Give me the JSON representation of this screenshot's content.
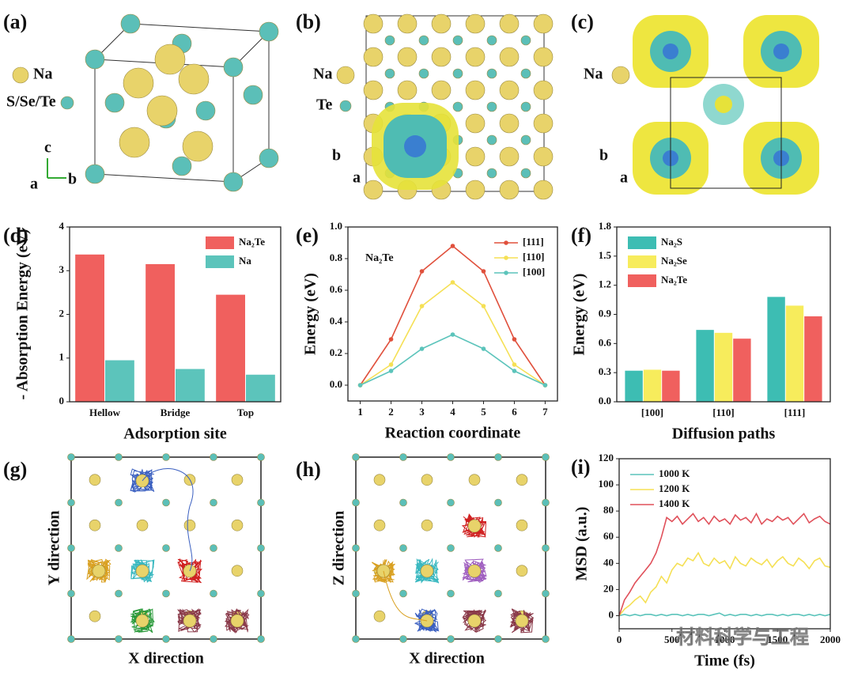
{
  "panels": {
    "a": {
      "label": "(a)",
      "legend": [
        "Na",
        "S/Se/Te"
      ],
      "axes": [
        "c",
        "a",
        "b"
      ]
    },
    "b": {
      "label": "(b)",
      "legend": [
        "Na",
        "Te"
      ],
      "axes": [
        "b",
        "a"
      ]
    },
    "c": {
      "label": "(c)",
      "legend": [
        "Na"
      ],
      "axes": [
        "b",
        "a"
      ]
    },
    "g": {
      "label": "(g)",
      "ylabel": "Y direction",
      "xlabel": "X direction"
    },
    "h": {
      "label": "(h)",
      "ylabel": "Z direction",
      "xlabel": "X direction"
    },
    "watermark": "材料科学与工程"
  },
  "chart_data": [
    {
      "type": "bar",
      "label": "(d)",
      "xlabel": "Adsorption site",
      "ylabel": "- Absorption Energy (eV)",
      "categories": [
        "Hellow",
        "Bridge",
        "Top"
      ],
      "series": [
        {
          "name": "Na₂Te",
          "color": "#f0605e",
          "values": [
            3.37,
            3.15,
            2.45
          ]
        },
        {
          "name": "Na",
          "color": "#5cc4bb",
          "values": [
            0.95,
            0.75,
            0.62
          ]
        }
      ],
      "ylim": [
        0,
        4
      ],
      "yticks": [
        0,
        1,
        2,
        3,
        4
      ],
      "legend": "upper right"
    },
    {
      "type": "line",
      "label": "(e)",
      "xlabel": "Reaction coordinate",
      "ylabel": "Energy (eV)",
      "annotation": "Na₂Te",
      "x": [
        1,
        2,
        3,
        4,
        5,
        6,
        7
      ],
      "series": [
        {
          "name": "[111]",
          "color": "#e0503c",
          "values": [
            0,
            0.29,
            0.72,
            0.88,
            0.72,
            0.29,
            0
          ]
        },
        {
          "name": "[110]",
          "color": "#f5e055",
          "values": [
            0,
            0.13,
            0.5,
            0.65,
            0.5,
            0.13,
            0
          ]
        },
        {
          "name": "[100]",
          "color": "#5cc4bb",
          "values": [
            0,
            0.09,
            0.23,
            0.32,
            0.23,
            0.09,
            0
          ]
        }
      ],
      "xlim": [
        0.6,
        7.4
      ],
      "xticks": [
        1,
        2,
        3,
        4,
        5,
        6,
        7
      ],
      "ylim": [
        -0.1,
        1.0
      ],
      "yticks": [
        {
          "value": 0,
          "label": "0.0"
        },
        0.2,
        0.4,
        0.6,
        0.8,
        {
          "value": 1,
          "label": "1.0"
        }
      ],
      "markers": true,
      "legend": "upper right"
    },
    {
      "type": "bar",
      "label": "(f)",
      "xlabel": "Diffusion paths",
      "ylabel": "Energy (eV)",
      "categories": [
        "[100]",
        "[110]",
        "[111]"
      ],
      "series": [
        {
          "name": "Na₂S",
          "color": "#3dbdb3",
          "values": [
            0.32,
            0.74,
            1.08
          ]
        },
        {
          "name": "Na₂Se",
          "color": "#f7ec5c",
          "values": [
            0.33,
            0.71,
            0.99
          ]
        },
        {
          "name": "Na₂Te",
          "color": "#f0605e",
          "values": [
            0.32,
            0.65,
            0.88
          ]
        }
      ],
      "ylim": [
        0,
        1.8
      ],
      "yticks": [
        {
          "value": 0,
          "label": "0.0"
        },
        0.3,
        0.6,
        0.9,
        1.2,
        1.5,
        1.8
      ],
      "legend": "upper left"
    },
    {
      "type": "line",
      "label": "(i)",
      "xlabel": "Time (fs)",
      "ylabel": "MSD (a.u.)",
      "x": [
        0,
        50,
        100,
        150,
        200,
        250,
        300,
        350,
        400,
        450,
        500,
        550,
        600,
        650,
        700,
        750,
        800,
        850,
        900,
        950,
        1000,
        1050,
        1100,
        1150,
        1200,
        1250,
        1300,
        1350,
        1400,
        1450,
        1500,
        1550,
        1600,
        1650,
        1700,
        1750,
        1800,
        1850,
        1900,
        1950,
        2000
      ],
      "series": [
        {
          "name": "1000 K",
          "color": "#5cc4bb",
          "values": [
            0,
            1,
            0,
            1,
            0,
            1,
            1,
            0,
            1,
            0,
            1,
            1,
            0,
            1,
            0,
            1,
            1,
            0,
            1,
            2,
            0,
            1,
            0,
            1,
            1,
            0,
            1,
            0,
            1,
            1,
            0,
            1,
            0,
            1,
            1,
            0,
            1,
            0,
            1,
            0,
            1
          ]
        },
        {
          "name": "1200 K",
          "color": "#f5e055",
          "values": [
            0,
            5,
            8,
            12,
            15,
            10,
            18,
            22,
            30,
            25,
            35,
            40,
            38,
            44,
            42,
            48,
            40,
            38,
            44,
            40,
            42,
            36,
            45,
            40,
            38,
            44,
            41,
            39,
            43,
            37,
            42,
            45,
            40,
            38,
            44,
            41,
            36,
            42,
            44,
            38,
            37
          ]
        },
        {
          "name": "1400 K",
          "color": "#e0505a",
          "values": [
            0,
            12,
            18,
            25,
            30,
            35,
            40,
            48,
            60,
            75,
            72,
            76,
            70,
            74,
            78,
            72,
            75,
            70,
            76,
            72,
            74,
            70,
            77,
            73,
            75,
            71,
            78,
            70,
            74,
            72,
            76,
            73,
            75,
            70,
            74,
            78,
            71,
            74,
            76,
            72,
            70
          ]
        }
      ],
      "xlim": [
        0,
        2000
      ],
      "xticks": [
        0,
        500,
        1000,
        1500,
        2000
      ],
      "ylim": [
        -10,
        120
      ],
      "yticks": [
        0,
        20,
        40,
        60,
        80,
        100,
        120
      ],
      "markers": false,
      "legend": "upper left"
    }
  ]
}
